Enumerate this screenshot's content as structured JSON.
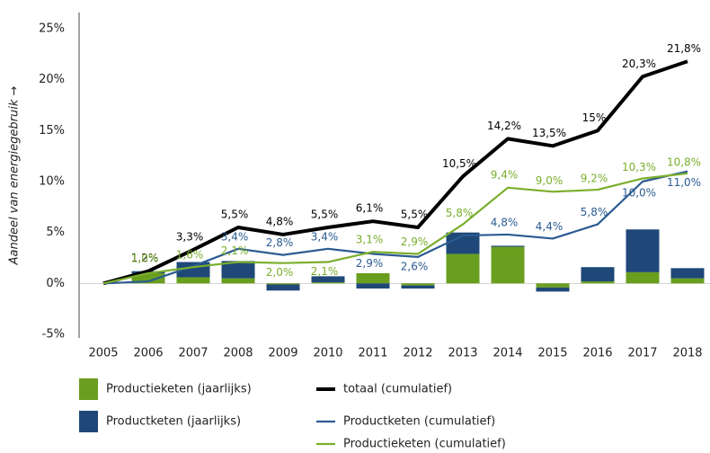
{
  "chart_data": {
    "type": "bar+line",
    "y_axis_label": "Aandeel van energiegebruik →",
    "categories": [
      "2005",
      "2006",
      "2007",
      "2008",
      "2009",
      "2010",
      "2011",
      "2012",
      "2013",
      "2014",
      "2015",
      "2016",
      "2017",
      "2018"
    ],
    "ylim": [
      -5,
      25
    ],
    "yticks": [
      {
        "value": -5,
        "label": "-5%"
      },
      {
        "value": 0,
        "label": "0%"
      },
      {
        "value": 5,
        "label": "5%"
      },
      {
        "value": 10,
        "label": "10%"
      },
      {
        "value": 15,
        "label": "15%"
      },
      {
        "value": 20,
        "label": "20%"
      },
      {
        "value": 25,
        "label": "25%"
      }
    ],
    "grid": false,
    "legend": "bottom",
    "series": [
      {
        "name": "Productieketen (jaarlijks)",
        "type": "bar",
        "color": "#6a9e1f",
        "values": [
          0,
          1.0,
          0.6,
          0.5,
          -0.1,
          0.1,
          1.0,
          -0.2,
          2.9,
          3.6,
          -0.4,
          0.2,
          1.1,
          0.5
        ]
      },
      {
        "name": "Productketen (jaarlijks)",
        "type": "bar",
        "color": "#1f4878",
        "values": [
          0,
          0.2,
          1.5,
          1.7,
          -0.6,
          0.6,
          -0.5,
          -0.3,
          2.1,
          0.1,
          -0.4,
          1.4,
          4.2,
          1.0
        ]
      },
      {
        "name": "totaal (cumulatief)",
        "type": "line",
        "color": "#000000",
        "values": [
          0,
          1.2,
          3.3,
          5.5,
          4.8,
          5.5,
          6.1,
          5.5,
          10.5,
          14.2,
          13.5,
          15,
          20.3,
          21.8
        ],
        "value_labels": [
          null,
          "1,2%",
          "3,3%",
          "5,5%",
          "4,8%",
          "5,5%",
          "6,1%",
          "5,5%",
          "10,5%",
          "14,2%",
          "13,5%",
          "15%",
          "20,3%",
          "21,8%"
        ]
      },
      {
        "name": "Productketen (cumulatief)",
        "type": "line",
        "color": "#2b5b92",
        "values": [
          0,
          0.2,
          1.7,
          3.4,
          2.8,
          3.4,
          2.9,
          2.6,
          4.7,
          4.8,
          4.4,
          5.8,
          10.0,
          11.0
        ],
        "value_labels": [
          null,
          null,
          null,
          "3,4%",
          "2,8%",
          "3,4%",
          "2,9%",
          "2,6%",
          null,
          "4,8%",
          "4,4%",
          "5,8%",
          "10,0%",
          "11,0%"
        ]
      },
      {
        "name": "Productieketen (cumulatief)",
        "type": "line",
        "color": "#7aae2c",
        "values": [
          0,
          1.0,
          1.6,
          2.1,
          2.0,
          2.1,
          3.1,
          2.9,
          5.8,
          9.4,
          9.0,
          9.2,
          10.3,
          10.8
        ],
        "value_labels": [
          null,
          "1,0%",
          "1,6%",
          "2,1%",
          "2,0%",
          "2,1%",
          "3,1%",
          "2,9%",
          "5,8%",
          "9,4%",
          "9,0%",
          "9,2%",
          "10,3%",
          "10,8%"
        ]
      }
    ]
  }
}
